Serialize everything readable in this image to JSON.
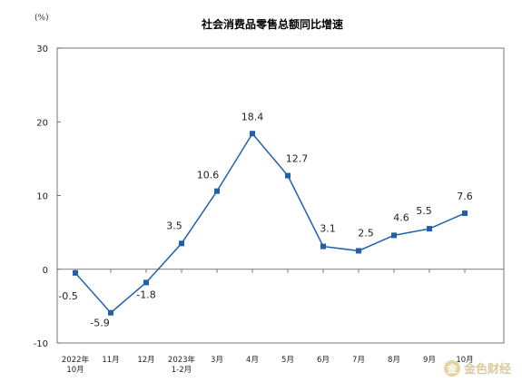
{
  "chart_data": {
    "type": "line",
    "title": "社会消费品零售总额同比增速",
    "unit": "(%)",
    "ylim": [
      -10,
      30
    ],
    "yticks": [
      "30",
      "20",
      "10",
      "0",
      "-10"
    ],
    "categories": [
      [
        "2022年",
        "10月"
      ],
      [
        "11月"
      ],
      [
        "12月"
      ],
      [
        "2023年",
        "1-2月"
      ],
      [
        "3月"
      ],
      [
        "4月"
      ],
      [
        "5月"
      ],
      [
        "6月"
      ],
      [
        "7月"
      ],
      [
        "8月"
      ],
      [
        "9月"
      ],
      [
        "10月"
      ]
    ],
    "values": [
      -0.5,
      -5.9,
      -1.8,
      3.5,
      10.6,
      18.4,
      12.7,
      3.1,
      2.5,
      4.6,
      5.5,
      7.6
    ],
    "labels": [
      "-0.5",
      "-5.9",
      "-1.8",
      "3.5",
      "10.6",
      "18.4",
      "12.7",
      "3.1",
      "2.5",
      "4.6",
      "5.5",
      "7.6"
    ],
    "color": "#1f5fad",
    "grid": false
  },
  "watermark": {
    "logo": "金",
    "text": "金色财经"
  }
}
